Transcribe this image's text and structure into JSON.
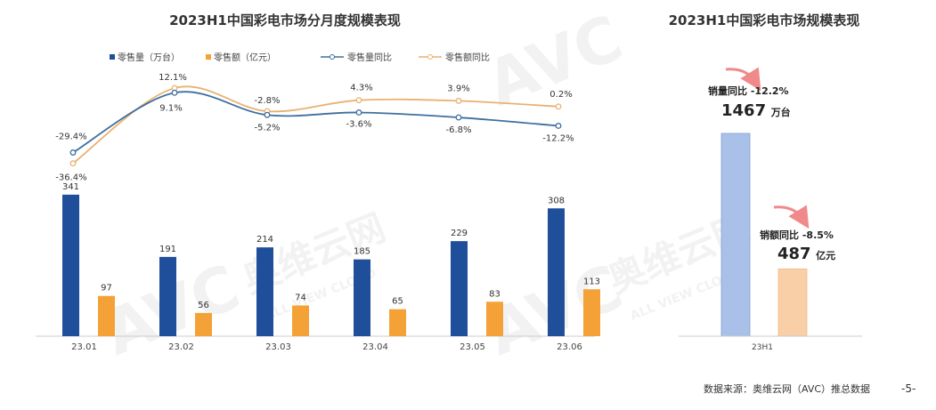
{
  "colors": {
    "volume_bar": "#1f4e9a",
    "value_bar": "#f4a238",
    "volume_line": "#3f6f9f",
    "value_line": "#e8b272",
    "total_volume_bar": "#a9c1e8",
    "total_value_bar": "#f9cfa8",
    "arrow": "#f08a8a",
    "axis": "#cccccc"
  },
  "watermark": {
    "logo": "AVC",
    "cn": "奥维云网",
    "en": "ALL VIEW CLOUD"
  },
  "footer": {
    "source": "数据来源：奥维云网（AVC）推总数据",
    "page_number": "-5-"
  },
  "chart_data": [
    {
      "type": "bar+line",
      "title": "2023H1中国彩电市场分月度规模表现",
      "categories": [
        "23.01",
        "23.02",
        "23.03",
        "23.04",
        "23.05",
        "23.06"
      ],
      "legend": [
        "零售量（万台）",
        "零售额（亿元）",
        "零售量同比",
        "零售额同比"
      ],
      "legend_position": "top",
      "bar_series": [
        {
          "name": "零售量（万台）",
          "values": [
            341,
            191,
            214,
            185,
            229,
            308
          ]
        },
        {
          "name": "零售额（亿元）",
          "values": [
            97,
            56,
            74,
            65,
            83,
            113
          ]
        }
      ],
      "line_series": [
        {
          "name": "零售量同比",
          "values": [
            -29.4,
            9.1,
            -5.2,
            -3.6,
            -6.8,
            -12.2
          ],
          "labels": [
            "-29.4%",
            "9.1%",
            "-5.2%",
            "-3.6%",
            "-6.8%",
            "-12.2%"
          ]
        },
        {
          "name": "零售额同比",
          "values": [
            -36.4,
            12.1,
            -2.8,
            4.3,
            3.9,
            0.2
          ],
          "labels": [
            "-36.4%",
            "12.1%",
            "-2.8%",
            "4.3%",
            "3.9%",
            "0.2%"
          ]
        }
      ],
      "bar_ylim": [
        0,
        360
      ],
      "line_ylim": [
        -40,
        15
      ],
      "grid": false
    },
    {
      "type": "bar",
      "title": "2023H1中国彩电市场规模表现",
      "categories": [
        "23H1"
      ],
      "series": [
        {
          "name": "销量",
          "value": 1467,
          "unit": "万台",
          "yoy_label": "销量同比",
          "yoy": "-12.2%"
        },
        {
          "name": "销额",
          "value": 487,
          "unit": "亿元",
          "yoy_label": "销额同比",
          "yoy": "-8.5%"
        }
      ],
      "ylim": [
        0,
        1600
      ],
      "grid": false
    }
  ]
}
